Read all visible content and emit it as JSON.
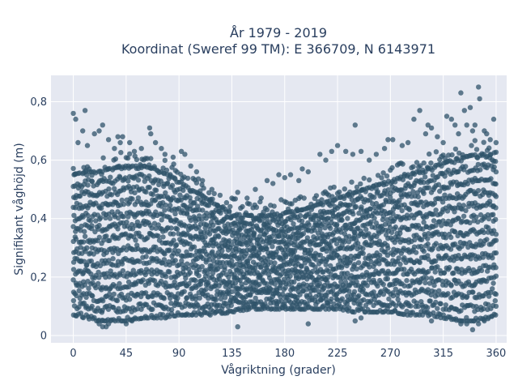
{
  "chart_data": {
    "type": "scatter",
    "title_lines": [
      "År 1979 - 2019",
      "Koordinat (Sweref 99 TM): E 366709, N 6143971"
    ],
    "xlabel": "Vågriktning (grader)",
    "ylabel": "Signifikant våghöjd (m)",
    "xlim": [
      -19,
      369
    ],
    "ylim": [
      -0.025,
      0.89
    ],
    "x_ticks": [
      0,
      45,
      90,
      135,
      180,
      225,
      270,
      315,
      360
    ],
    "x_tick_labels": [
      "0",
      "45",
      "90",
      "135",
      "180",
      "225",
      "270",
      "315",
      "360"
    ],
    "y_ticks": [
      0,
      0.2,
      0.4,
      0.6,
      0.8
    ],
    "y_tick_labels": [
      "0",
      "0,2",
      "0,4",
      "0,6",
      "0,8"
    ],
    "grid": true,
    "marker_color": "#2f5369",
    "plot_bg": "#e5e8f1",
    "band": {
      "x": [
        0,
        10,
        20,
        30,
        45,
        60,
        70,
        80,
        90,
        100,
        110,
        120,
        135,
        150,
        165,
        180,
        195,
        210,
        225,
        240,
        255,
        270,
        285,
        300,
        315,
        330,
        345,
        355,
        360
      ],
      "low": [
        0.07,
        0.06,
        0.05,
        0.05,
        0.05,
        0.06,
        0.06,
        0.06,
        0.07,
        0.07,
        0.07,
        0.07,
        0.08,
        0.09,
        0.09,
        0.09,
        0.09,
        0.09,
        0.09,
        0.08,
        0.08,
        0.08,
        0.07,
        0.07,
        0.06,
        0.05,
        0.05,
        0.06,
        0.07
      ],
      "high": [
        0.55,
        0.56,
        0.56,
        0.57,
        0.58,
        0.58,
        0.57,
        0.55,
        0.53,
        0.5,
        0.48,
        0.45,
        0.42,
        0.41,
        0.41,
        0.42,
        0.43,
        0.45,
        0.47,
        0.49,
        0.51,
        0.53,
        0.55,
        0.57,
        0.59,
        0.61,
        0.62,
        0.62,
        0.6
      ]
    },
    "outliers": [
      [
        0,
        0.76
      ],
      [
        2,
        0.74
      ],
      [
        4,
        0.66
      ],
      [
        8,
        0.7
      ],
      [
        10,
        0.77
      ],
      [
        12,
        0.65
      ],
      [
        18,
        0.69
      ],
      [
        22,
        0.7
      ],
      [
        25,
        0.72
      ],
      [
        30,
        0.67
      ],
      [
        35,
        0.64
      ],
      [
        38,
        0.68
      ],
      [
        40,
        0.66
      ],
      [
        42,
        0.68
      ],
      [
        48,
        0.66
      ],
      [
        52,
        0.63
      ],
      [
        58,
        0.64
      ],
      [
        65,
        0.71
      ],
      [
        66,
        0.69
      ],
      [
        70,
        0.66
      ],
      [
        75,
        0.64
      ],
      [
        78,
        0.62
      ],
      [
        85,
        0.61
      ],
      [
        92,
        0.63
      ],
      [
        95,
        0.62
      ],
      [
        100,
        0.58
      ],
      [
        105,
        0.56
      ],
      [
        110,
        0.53
      ],
      [
        118,
        0.5
      ],
      [
        125,
        0.48
      ],
      [
        135,
        0.47
      ],
      [
        140,
        0.49
      ],
      [
        148,
        0.47
      ],
      [
        155,
        0.5
      ],
      [
        160,
        0.47
      ],
      [
        165,
        0.53
      ],
      [
        170,
        0.52
      ],
      [
        175,
        0.55
      ],
      [
        180,
        0.54
      ],
      [
        185,
        0.55
      ],
      [
        192,
        0.53
      ],
      [
        195,
        0.57
      ],
      [
        200,
        0.56
      ],
      [
        210,
        0.62
      ],
      [
        215,
        0.6
      ],
      [
        220,
        0.63
      ],
      [
        225,
        0.65
      ],
      [
        232,
        0.63
      ],
      [
        238,
        0.62
      ],
      [
        240,
        0.72
      ],
      [
        245,
        0.63
      ],
      [
        252,
        0.6
      ],
      [
        258,
        0.62
      ],
      [
        265,
        0.64
      ],
      [
        268,
        0.67
      ],
      [
        272,
        0.67
      ],
      [
        280,
        0.65
      ],
      [
        285,
        0.66
      ],
      [
        290,
        0.74
      ],
      [
        295,
        0.77
      ],
      [
        300,
        0.69
      ],
      [
        302,
        0.72
      ],
      [
        305,
        0.71
      ],
      [
        310,
        0.68
      ],
      [
        315,
        0.66
      ],
      [
        318,
        0.75
      ],
      [
        322,
        0.74
      ],
      [
        325,
        0.72
      ],
      [
        328,
        0.69
      ],
      [
        330,
        0.83
      ],
      [
        333,
        0.77
      ],
      [
        335,
        0.72
      ],
      [
        338,
        0.78
      ],
      [
        340,
        0.7
      ],
      [
        342,
        0.72
      ],
      [
        345,
        0.85
      ],
      [
        346,
        0.81
      ],
      [
        350,
        0.7
      ],
      [
        352,
        0.69
      ],
      [
        355,
        0.67
      ],
      [
        358,
        0.74
      ],
      [
        360,
        0.66
      ]
    ],
    "low_outliers": [
      [
        22,
        0.04
      ],
      [
        25,
        0.03
      ],
      [
        28,
        0.03
      ],
      [
        30,
        0.04
      ],
      [
        45,
        0.04
      ],
      [
        50,
        0.05
      ],
      [
        140,
        0.03
      ],
      [
        200,
        0.04
      ],
      [
        240,
        0.05
      ],
      [
        245,
        0.06
      ],
      [
        305,
        0.05
      ],
      [
        330,
        0.04
      ],
      [
        335,
        0.04
      ],
      [
        340,
        0.02
      ],
      [
        345,
        0.04
      ],
      [
        350,
        0.05
      ]
    ]
  }
}
